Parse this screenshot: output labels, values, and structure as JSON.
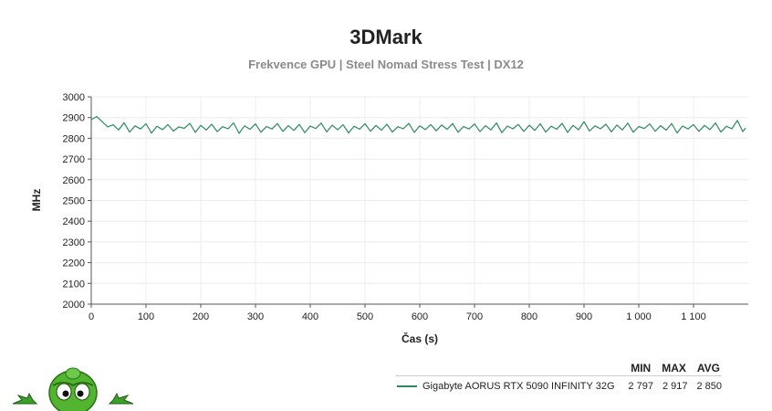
{
  "header": {
    "title": "3DMark",
    "subtitle": "Frekvence GPU | Steel Nomad Stress Test | DX12"
  },
  "legend": {
    "headers": [
      "MIN",
      "MAX",
      "AVG"
    ],
    "rows": [
      {
        "name": "Gigabyte AORUS RTX 5090 INFINITY 32G",
        "min": "2 797",
        "max": "2 917",
        "avg": "2 850"
      }
    ]
  },
  "chart_data": {
    "type": "line",
    "title": "3DMark",
    "subtitle": "Frekvence GPU | Steel Nomad Stress Test | DX12",
    "xlabel": "Čas (s)",
    "ylabel": "MHz",
    "xlim": [
      0,
      1200
    ],
    "ylim": [
      2000,
      3000
    ],
    "xticks": [
      0,
      100,
      200,
      300,
      400,
      500,
      600,
      700,
      800,
      900,
      1000,
      1100
    ],
    "xtick_labels": [
      "0",
      "100",
      "200",
      "300",
      "400",
      "500",
      "600",
      "700",
      "800",
      "900",
      "1 000",
      "1 100"
    ],
    "yticks": [
      2000,
      2100,
      2200,
      2300,
      2400,
      2500,
      2600,
      2700,
      2800,
      2900,
      3000
    ],
    "grid": true,
    "legend": "bottom-right",
    "series": [
      {
        "name": "Gigabyte AORUS RTX 5090 INFINITY 32G",
        "color": "#2a8a5a",
        "x": [
          0,
          10,
          20,
          30,
          40,
          50,
          60,
          70,
          80,
          90,
          100,
          110,
          120,
          130,
          140,
          150,
          160,
          170,
          180,
          190,
          200,
          210,
          220,
          230,
          240,
          250,
          260,
          270,
          280,
          290,
          300,
          310,
          320,
          330,
          340,
          350,
          360,
          370,
          380,
          390,
          400,
          410,
          420,
          430,
          440,
          450,
          460,
          470,
          480,
          490,
          500,
          510,
          520,
          530,
          540,
          550,
          560,
          570,
          580,
          590,
          600,
          610,
          620,
          630,
          640,
          650,
          660,
          670,
          680,
          690,
          700,
          710,
          720,
          730,
          740,
          750,
          760,
          770,
          780,
          790,
          800,
          810,
          820,
          830,
          840,
          850,
          860,
          870,
          880,
          890,
          900,
          910,
          920,
          930,
          940,
          950,
          960,
          970,
          980,
          990,
          1000,
          1010,
          1020,
          1030,
          1040,
          1050,
          1060,
          1070,
          1080,
          1090,
          1100,
          1110,
          1120,
          1130,
          1140,
          1150,
          1160,
          1170,
          1180,
          1190,
          1195
        ],
        "y": [
          2890,
          2905,
          2880,
          2855,
          2865,
          2840,
          2875,
          2830,
          2860,
          2845,
          2870,
          2825,
          2858,
          2842,
          2866,
          2835,
          2855,
          2848,
          2872,
          2828,
          2862,
          2840,
          2868,
          2832,
          2856,
          2846,
          2874,
          2824,
          2860,
          2843,
          2869,
          2829,
          2857,
          2845,
          2871,
          2833,
          2861,
          2838,
          2867,
          2827,
          2859,
          2847,
          2873,
          2831,
          2863,
          2841,
          2865,
          2826,
          2858,
          2844,
          2870,
          2834,
          2862,
          2839,
          2868,
          2830,
          2856,
          2846,
          2872,
          2828,
          2860,
          2842,
          2866,
          2836,
          2864,
          2843,
          2871,
          2829,
          2857,
          2845,
          2869,
          2832,
          2861,
          2840,
          2874,
          2827,
          2859,
          2846,
          2867,
          2833,
          2863,
          2838,
          2870,
          2830,
          2858,
          2844,
          2872,
          2828,
          2862,
          2841,
          2880,
          2835,
          2860,
          2846,
          2868,
          2831,
          2864,
          2840,
          2873,
          2829,
          2857,
          2847,
          2869,
          2834,
          2861,
          2839,
          2871,
          2826,
          2859,
          2845,
          2866,
          2833,
          2862,
          2842,
          2874,
          2830,
          2858,
          2846,
          2886,
          2832,
          2850
        ]
      }
    ]
  }
}
